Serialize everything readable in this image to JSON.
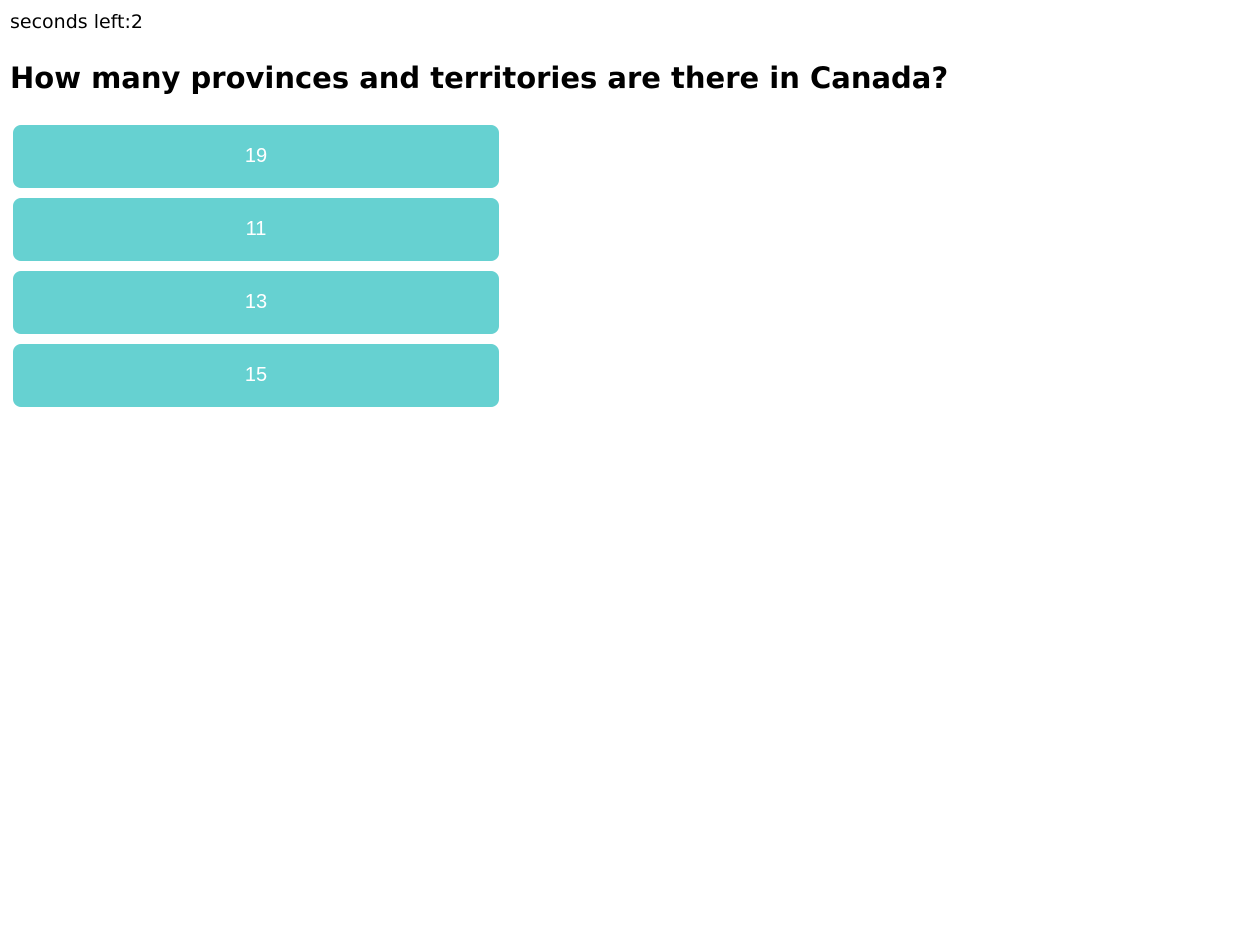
{
  "timer": {
    "label": "seconds left:",
    "value": "2"
  },
  "question": {
    "text": "How many provinces and territories are there in Canada?"
  },
  "answers": [
    {
      "label": "19"
    },
    {
      "label": "11"
    },
    {
      "label": "13"
    },
    {
      "label": "15"
    }
  ],
  "colors": {
    "button_bg": "#66d1d1",
    "button_text": "#ffffff"
  }
}
